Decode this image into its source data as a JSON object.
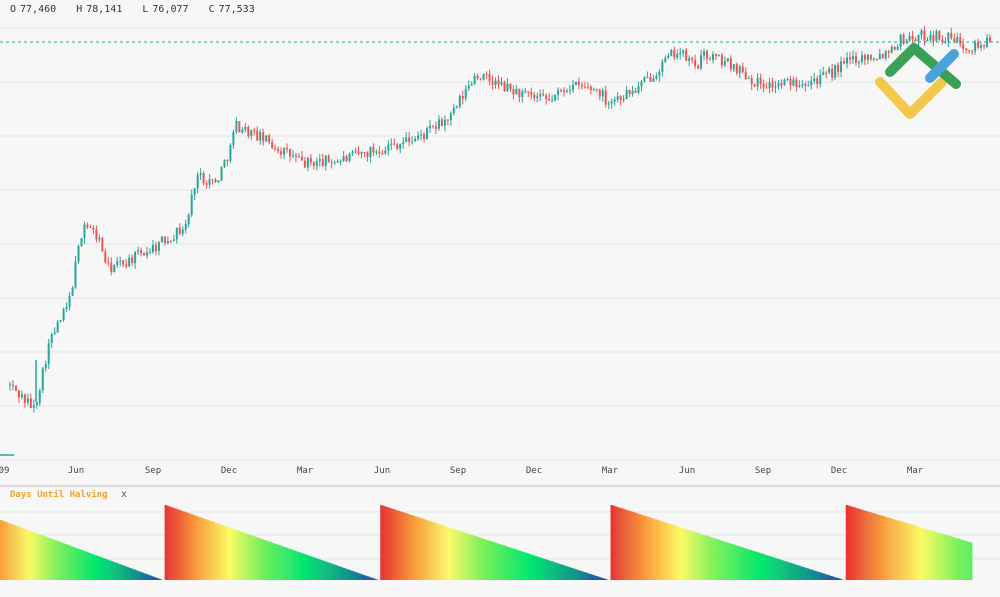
{
  "ohlc": {
    "open_label": "O",
    "open": "77,460",
    "high_label": "H",
    "high": "78,141",
    "low_label": "L",
    "low": "76,077",
    "close_label": "C",
    "close": "77,533"
  },
  "colors": {
    "up": "#26a69a",
    "down": "#ef5350",
    "last_price_line": "#26a69a",
    "grid": "#e6e6e6",
    "osc_title": "#f0a030"
  },
  "chart_data": [
    {
      "type": "candlestick",
      "x_ticks": [
        "09",
        "Jun",
        "Sep",
        "Dec",
        "Mar",
        "Jun",
        "Sep",
        "Dec",
        "Mar",
        "Jun",
        "Sep",
        "Dec",
        "Mar"
      ],
      "last_price": 77533,
      "y_range": [
        0,
        80000
      ],
      "log_scale": true,
      "grid": true,
      "price_path_norm": [
        [
          0.0,
          0.14
        ],
        [
          0.025,
          0.08
        ],
        [
          0.04,
          0.25
        ],
        [
          0.06,
          0.35
        ],
        [
          0.075,
          0.56
        ],
        [
          0.09,
          0.52
        ],
        [
          0.1,
          0.44
        ],
        [
          0.12,
          0.46
        ],
        [
          0.15,
          0.5
        ],
        [
          0.18,
          0.55
        ],
        [
          0.19,
          0.68
        ],
        [
          0.21,
          0.66
        ],
        [
          0.225,
          0.75
        ],
        [
          0.23,
          0.81
        ],
        [
          0.26,
          0.77
        ],
        [
          0.3,
          0.71
        ],
        [
          0.34,
          0.72
        ],
        [
          0.38,
          0.75
        ],
        [
          0.42,
          0.78
        ],
        [
          0.45,
          0.83
        ],
        [
          0.475,
          0.94
        ],
        [
          0.5,
          0.91
        ],
        [
          0.53,
          0.88
        ],
        [
          0.55,
          0.87
        ],
        [
          0.57,
          0.91
        ],
        [
          0.6,
          0.9
        ],
        [
          0.61,
          0.87
        ],
        [
          0.64,
          0.9
        ],
        [
          0.66,
          0.95
        ],
        [
          0.68,
          1.0
        ],
        [
          0.7,
          0.96
        ],
        [
          0.71,
          0.99
        ],
        [
          0.74,
          0.96
        ],
        [
          0.76,
          0.92
        ],
        [
          0.78,
          0.91
        ],
        [
          0.8,
          0.92
        ],
        [
          0.83,
          0.93
        ],
        [
          0.86,
          0.98
        ],
        [
          0.89,
          0.99
        ],
        [
          0.91,
          1.03
        ],
        [
          0.94,
          1.04
        ],
        [
          0.96,
          1.03
        ],
        [
          0.98,
          1.01
        ],
        [
          1.0,
          1.02
        ]
      ]
    },
    {
      "type": "area",
      "title": "Days Until Halving",
      "close_label": "x",
      "cycles": [
        {
          "start": 0.0,
          "end": 0.165,
          "start_value": 0.8,
          "peak": 0.8
        },
        {
          "start": 0.168,
          "end": 0.385,
          "start_value": 1.0,
          "peak": 1.0
        },
        {
          "start": 0.388,
          "end": 0.62,
          "start_value": 1.0,
          "peak": 1.0
        },
        {
          "start": 0.623,
          "end": 0.86,
          "start_value": 1.0,
          "peak": 1.0
        },
        {
          "start": 0.863,
          "end": 0.99,
          "start_value": 1.0,
          "peak": 1.0
        }
      ],
      "cycle_partial": [
        true,
        false,
        false,
        false,
        true
      ],
      "end_values": [
        0.0,
        0.0,
        0.0,
        0.0,
        0.5
      ]
    }
  ]
}
